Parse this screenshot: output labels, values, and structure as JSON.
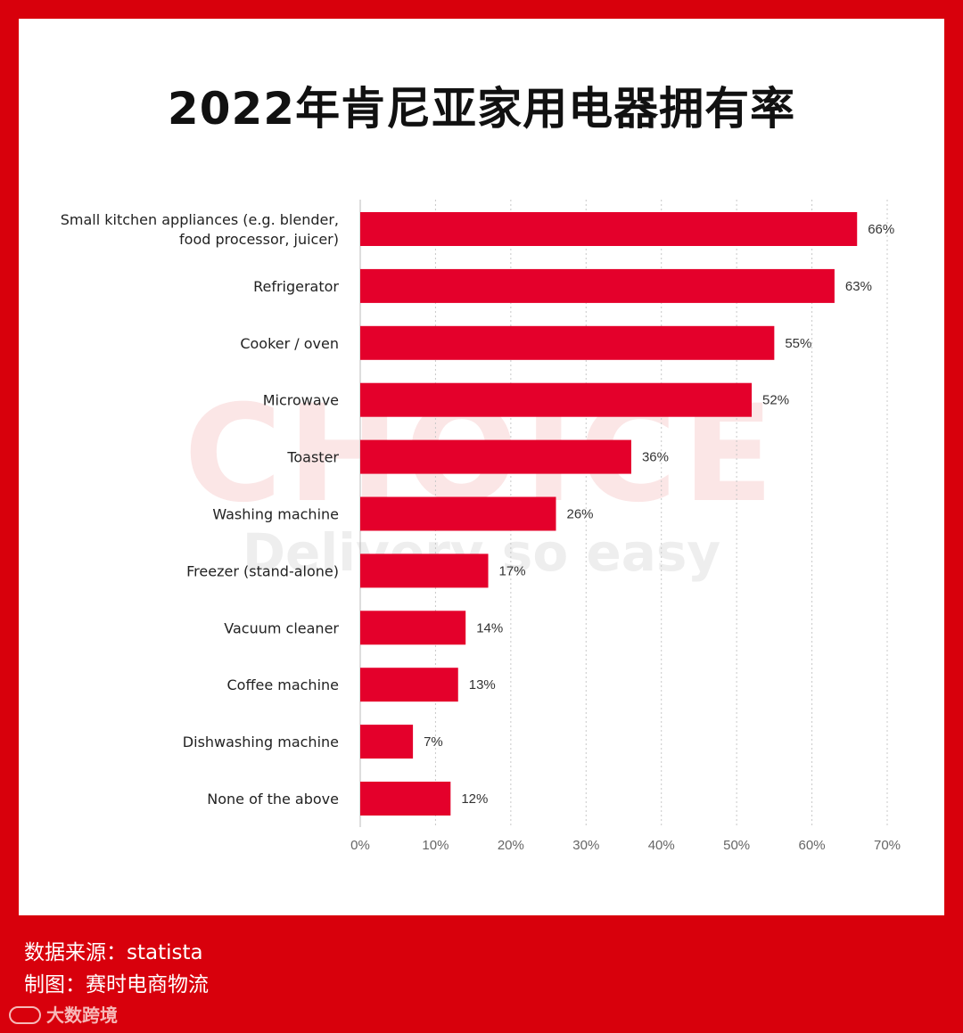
{
  "title": "2022年肯尼亚家用电器拥有率",
  "watermark": {
    "text1": "CHOICE",
    "text2": "Delivery so easy"
  },
  "colors": {
    "background": "#d8000c",
    "bar": "#e4002b",
    "grid": "#c8c8c8",
    "axis": "#bbbbbb"
  },
  "chart_data": {
    "type": "bar",
    "orientation": "horizontal",
    "categories": [
      "Small kitchen appliances (e.g. blender, food processor, juicer)",
      "Refrigerator",
      "Cooker / oven",
      "Microwave",
      "Toaster",
      "Washing machine",
      "Freezer (stand-alone)",
      "Vacuum cleaner",
      "Coffee machine",
      "Dishwashing machine",
      "None of the above"
    ],
    "category_lines": [
      [
        "Small kitchen appliances (e.g. blender,",
        "food processor, juicer)"
      ],
      [
        "Refrigerator"
      ],
      [
        "Cooker / oven"
      ],
      [
        "Microwave"
      ],
      [
        "Toaster"
      ],
      [
        "Washing machine"
      ],
      [
        "Freezer (stand-alone)"
      ],
      [
        "Vacuum cleaner"
      ],
      [
        "Coffee machine"
      ],
      [
        "Dishwashing machine"
      ],
      [
        "None of the above"
      ]
    ],
    "values": [
      66,
      63,
      55,
      52,
      36,
      26,
      17,
      14,
      13,
      7,
      12
    ],
    "value_labels": [
      "66%",
      "63%",
      "55%",
      "52%",
      "36%",
      "26%",
      "17%",
      "14%",
      "13%",
      "7%",
      "12%"
    ],
    "xlim": [
      0,
      70
    ],
    "xticks": [
      0,
      10,
      20,
      30,
      40,
      50,
      60,
      70
    ],
    "xtick_labels": [
      "0%",
      "10%",
      "20%",
      "30%",
      "40%",
      "50%",
      "60%",
      "70%"
    ],
    "xlabel": "",
    "ylabel": "",
    "grid": true
  },
  "footer": {
    "source": "数据来源：statista",
    "maker": "制图：赛时电商物流",
    "logo_text": "大数跨境"
  }
}
